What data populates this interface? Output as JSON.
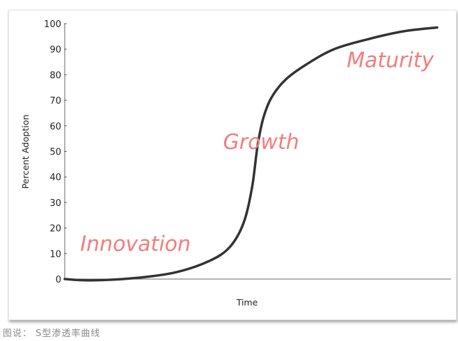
{
  "caption": "图说： S型渗透率曲线",
  "chart_data": {
    "type": "line",
    "title": "",
    "xlabel": "Time",
    "ylabel": "Percent Adoption",
    "xlim": [
      0,
      100
    ],
    "ylim": [
      0,
      100
    ],
    "yticks": [
      0,
      10,
      20,
      30,
      40,
      50,
      60,
      70,
      80,
      90,
      100
    ],
    "grid": false,
    "line_color": "#333333",
    "annotation_color": "#f47c7c",
    "annotations": [
      {
        "text": "Innovation",
        "x": 4,
        "y": 11
      },
      {
        "text": "Growth",
        "x": 41,
        "y": 51
      },
      {
        "text": "Maturity",
        "x": 73,
        "y": 83
      }
    ],
    "series": [
      {
        "x": [
          0,
          6.7,
          17.5,
          28.3,
          37.3,
          42.7,
          46.3,
          48.5,
          49.9,
          51.4,
          53.5,
          57.1,
          62.5,
          69.7,
          78.7,
          87.7,
          96.4
        ],
        "y": [
          0,
          -0.5,
          0.3,
          2.5,
          7,
          12.5,
          22,
          36,
          52,
          63,
          71,
          78,
          84,
          90,
          94,
          97,
          98.5
        ]
      }
    ]
  }
}
